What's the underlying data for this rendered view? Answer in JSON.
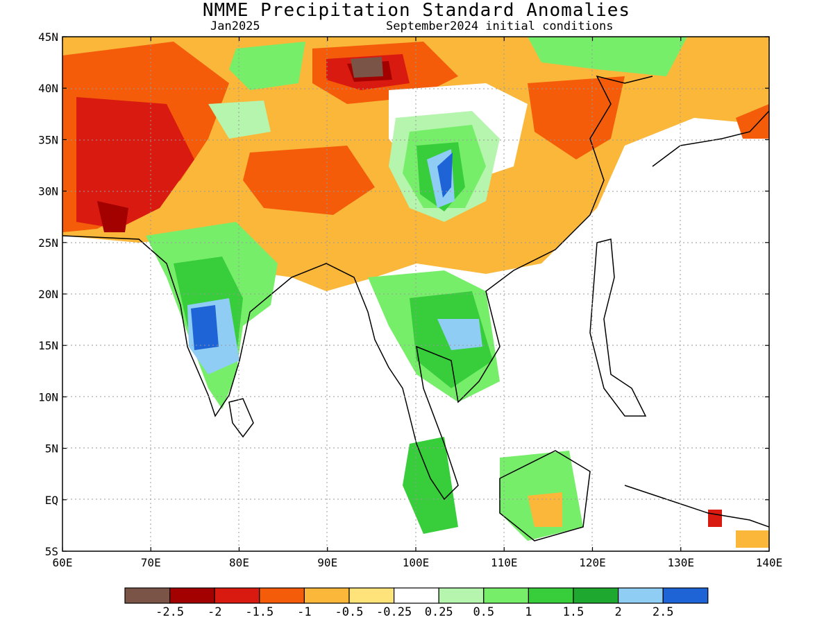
{
  "title": "NMME Precipitation Standard Anomalies",
  "subtitle_left": "Jan2025",
  "subtitle_right": "September2024 initial conditions",
  "lat_ticks": [
    "45N",
    "40N",
    "35N",
    "30N",
    "25N",
    "20N",
    "15N",
    "10N",
    "5N",
    "EQ",
    "5S"
  ],
  "lon_ticks": [
    "60E",
    "70E",
    "80E",
    "90E",
    "100E",
    "110E",
    "120E",
    "130E",
    "140E"
  ],
  "colorbar": {
    "colors": [
      "#7b5448",
      "#a30000",
      "#d91a10",
      "#f45c0a",
      "#fbb73a",
      "#fde37a",
      "#ffffff",
      "#b5f5ad",
      "#77ee6a",
      "#38cd3a",
      "#1ea830",
      "#8fcdf5",
      "#1f64d6"
    ],
    "labels": [
      "-2.5",
      "-2",
      "-1.5",
      "-1",
      "-0.5",
      "-0.25",
      "0.25",
      "0.5",
      "1",
      "1.5",
      "2",
      "2.5"
    ]
  }
}
